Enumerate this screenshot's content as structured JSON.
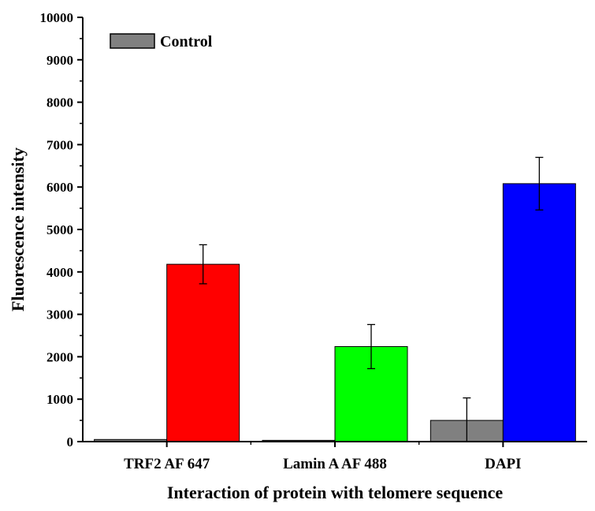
{
  "chart_data": {
    "type": "bar",
    "title": "",
    "xlabel": "Interaction of protein with telomere sequence",
    "ylabel": "Fluorescence intensity",
    "categories": [
      "TRF2 AF 647",
      "Lamin A AF 488",
      "DAPI"
    ],
    "ylim": [
      0,
      10000
    ],
    "yticks": [
      0,
      1000,
      2000,
      3000,
      4000,
      5000,
      6000,
      7000,
      8000,
      9000,
      10000
    ],
    "legend": {
      "position": "top-left",
      "entries": [
        {
          "label": "Control",
          "color": "#808080"
        }
      ]
    },
    "series": [
      {
        "name": "Control",
        "color": "#808080",
        "values": [
          50,
          30,
          500
        ],
        "errors": [
          null,
          null,
          530
        ]
      },
      {
        "color": "#ff0000",
        "values": [
          4180,
          null,
          null
        ],
        "errors": [
          460,
          null,
          null
        ]
      },
      {
        "color": "#00ff00",
        "values": [
          null,
          2240,
          null
        ],
        "errors": [
          null,
          520,
          null
        ]
      },
      {
        "color": "#0000ff",
        "values": [
          null,
          null,
          6080
        ],
        "errors": [
          null,
          null,
          620
        ]
      }
    ],
    "grid": false
  }
}
